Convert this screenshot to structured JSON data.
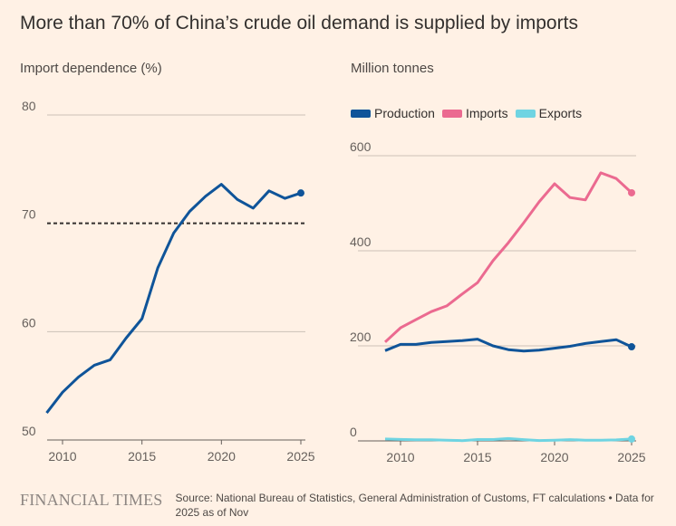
{
  "title": "More than 70% of China’s crude oil demand is supplied by imports",
  "footer": {
    "brand": "FINANCIAL TIMES",
    "source": "Source: National Bureau of Statistics, General Administration of Customs, FT calculations • Data for 2025 as of Nov"
  },
  "colors": {
    "background": "#fff1e5",
    "production": "#0f5499",
    "imports": "#eb6a90",
    "exports": "#6fd4e2",
    "reference_line": "#33302e"
  },
  "chart_data": [
    {
      "type": "line",
      "ylabel": "Import dependence (%)",
      "ylim": [
        50,
        80
      ],
      "yticks": [
        "50",
        "60",
        "70",
        "80"
      ],
      "xticks": [
        "2010",
        "2015",
        "2020",
        "2025"
      ],
      "grid": true,
      "reference_line": {
        "y": 70,
        "style": "dashed"
      },
      "x": [
        2009,
        2010,
        2011,
        2012,
        2013,
        2014,
        2015,
        2016,
        2017,
        2018,
        2019,
        2020,
        2021,
        2022,
        2023,
        2024,
        2025
      ],
      "series": [
        {
          "values": [
            52.5,
            54.4,
            55.8,
            56.9,
            57.4,
            59.4,
            61.2,
            65.9,
            69.1,
            71.1,
            72.5,
            73.6,
            72.2,
            71.4,
            73.0,
            72.3,
            72.8
          ],
          "color": "#0f5499",
          "end_marker": true
        }
      ]
    },
    {
      "type": "line",
      "ylabel": "Million tonnes",
      "ylim": [
        0,
        600
      ],
      "yticks": [
        "0",
        "200",
        "400",
        "600"
      ],
      "xticks": [
        "2010",
        "2015",
        "2020",
        "2025"
      ],
      "grid": true,
      "legend": "top-left",
      "x": [
        2009,
        2010,
        2011,
        2012,
        2013,
        2014,
        2015,
        2016,
        2017,
        2018,
        2019,
        2020,
        2021,
        2022,
        2023,
        2024,
        2025
      ],
      "series": [
        {
          "name": "Production",
          "color": "#0f5499",
          "values": [
            190,
            203,
            203,
            207,
            209,
            211,
            214,
            200,
            192,
            189,
            191,
            195,
            199,
            205,
            209,
            213,
            198
          ]
        },
        {
          "name": "Imports",
          "color": "#eb6a90",
          "values": [
            208,
            238,
            255,
            272,
            284,
            309,
            333,
            379,
            417,
            459,
            503,
            541,
            512,
            507,
            564,
            552,
            522
          ]
        },
        {
          "name": "Exports",
          "color": "#6fd4e2",
          "values": [
            4,
            3,
            2.5,
            2.4,
            1.6,
            0.6,
            2.9,
            2.9,
            4.9,
            2.6,
            0.8,
            1.6,
            2.6,
            1.6,
            1.4,
            2,
            4
          ]
        }
      ]
    }
  ]
}
